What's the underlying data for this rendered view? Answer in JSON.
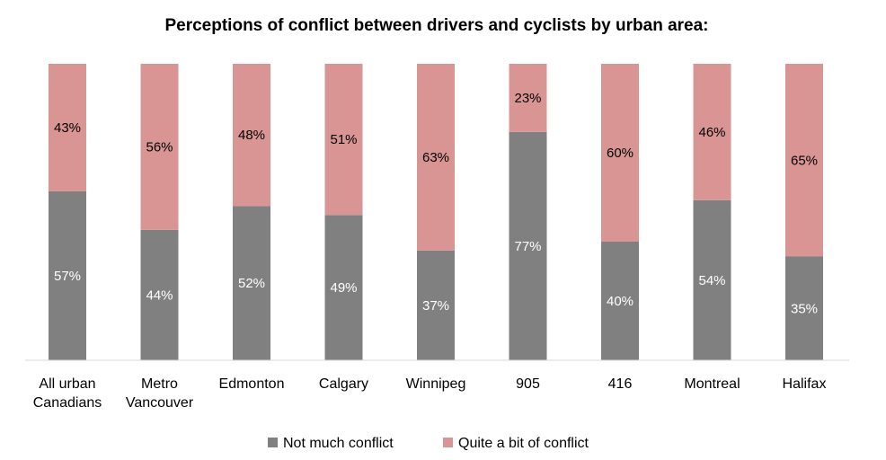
{
  "chart_data": {
    "type": "bar",
    "stacked": true,
    "normalized": true,
    "title": "Perceptions of conflict between drivers and cyclists by urban area:",
    "categories": [
      [
        "All urban",
        "Canadians"
      ],
      [
        "Metro",
        "Vancouver"
      ],
      [
        "Edmonton"
      ],
      [
        "Calgary"
      ],
      [
        "Winnipeg"
      ],
      [
        "905"
      ],
      [
        "416"
      ],
      [
        "Montreal"
      ],
      [
        "Halifax"
      ]
    ],
    "series": [
      {
        "name": "Not much conflict",
        "color": "#808080",
        "values": [
          57,
          44,
          52,
          49,
          37,
          77,
          40,
          54,
          35
        ],
        "labels": [
          "57%",
          "44%",
          "52%",
          "49%",
          "37%",
          "77%",
          "40%",
          "54%",
          "35%"
        ]
      },
      {
        "name": "Quite a bit of conflict",
        "color": "#d99594",
        "values": [
          43,
          56,
          48,
          51,
          63,
          23,
          60,
          46,
          65
        ],
        "labels": [
          "43%",
          "56%",
          "48%",
          "51%",
          "63%",
          "23%",
          "60%",
          "46%",
          "65%"
        ]
      }
    ],
    "ylim": [
      0,
      100
    ],
    "legend_position": "bottom",
    "grid": false
  }
}
